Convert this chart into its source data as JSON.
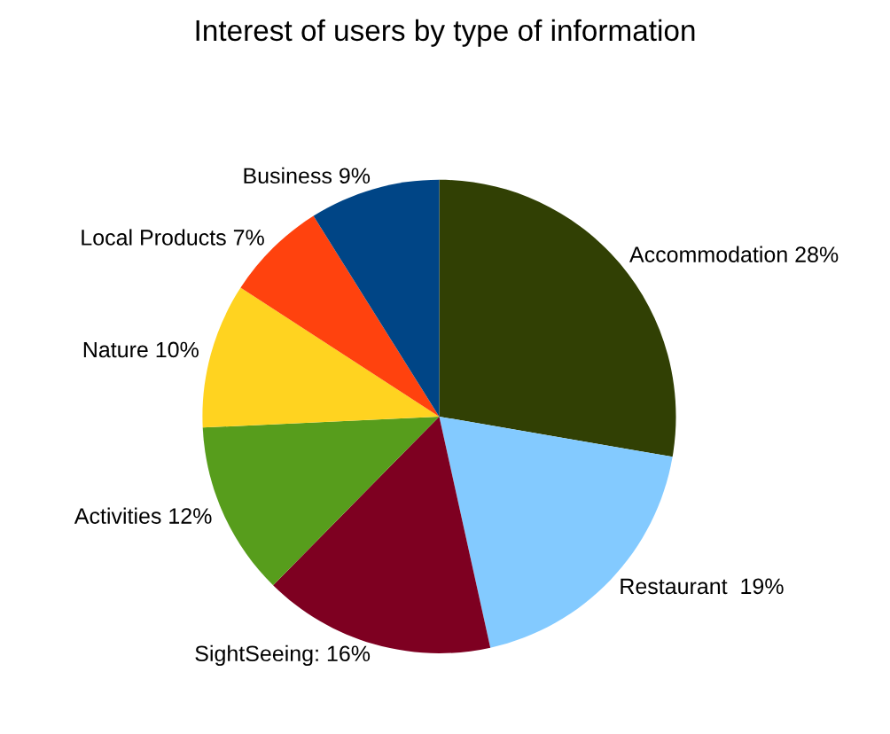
{
  "chart_data": {
    "type": "pie",
    "title": "Interest of users by type of information",
    "categories": [
      "Accommodation 28%",
      "Restaurant  19%",
      "SightSeeing: 16%",
      "Activities 12%",
      "Nature 10%",
      "Local Products 7%",
      "Business 9%"
    ],
    "values": [
      28,
      19,
      16,
      12,
      10,
      7,
      9
    ],
    "colors": [
      "#314004",
      "#83caff",
      "#7e0021",
      "#579d1c",
      "#ffd320",
      "#ff420e",
      "#004586"
    ]
  }
}
